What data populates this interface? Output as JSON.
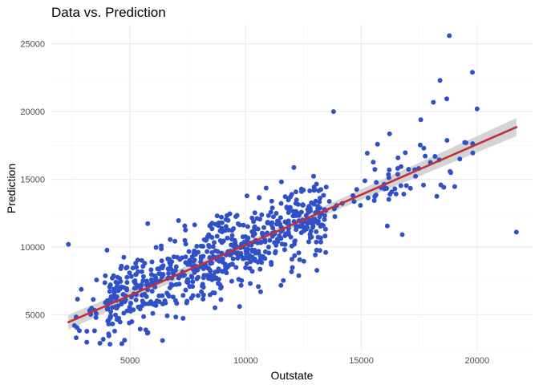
{
  "chart_data": {
    "type": "scatter",
    "title": "Data vs. Prediction",
    "xlabel": "Outstate",
    "ylabel": "Prediction",
    "xlim": [
      1600,
      22400
    ],
    "ylim": [
      2300,
      26400
    ],
    "x_ticks": [
      5000,
      10000,
      15000,
      20000
    ],
    "y_ticks": [
      5000,
      10000,
      15000,
      20000,
      25000
    ],
    "x_tick_labels": [
      "5000",
      "10000",
      "15000",
      "20000"
    ],
    "y_tick_labels": [
      "5000",
      "10000",
      "15000",
      "20000",
      "25000"
    ],
    "grid": true,
    "legend": "none",
    "colors": {
      "points": "#3050c8",
      "fit_line": "#c0303c",
      "confidence_band": "#cccccc"
    },
    "fit_line": {
      "x": [
        2340,
        21700
      ],
      "y": [
        4450,
        18850
      ]
    },
    "notable_points": [
      {
        "x": 2340,
        "y": 10200
      },
      {
        "x": 2600,
        "y": 4200
      },
      {
        "x": 3700,
        "y": 2900
      },
      {
        "x": 13800,
        "y": 20000
      },
      {
        "x": 18400,
        "y": 22300
      },
      {
        "x": 18800,
        "y": 25600
      },
      {
        "x": 19800,
        "y": 22900
      },
      {
        "x": 20000,
        "y": 20200
      },
      {
        "x": 21700,
        "y": 11100
      }
    ],
    "point_cloud": {
      "n": 760,
      "x_range": [
        2600,
        20000
      ],
      "slope": 0.745,
      "intercept": 2700,
      "residual_sd": 1500
    }
  }
}
